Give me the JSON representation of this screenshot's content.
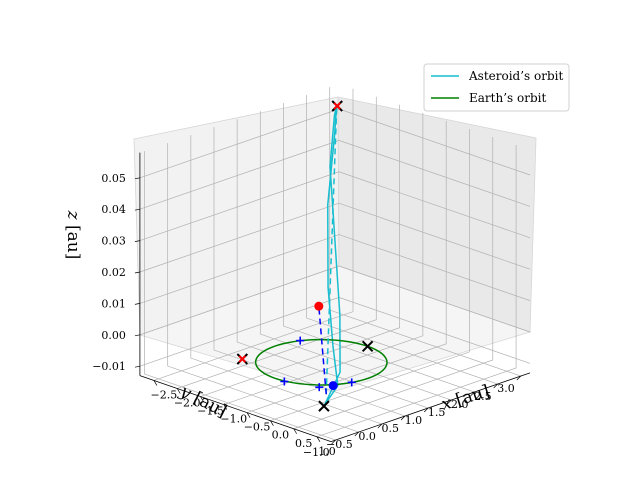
{
  "chart_data": {
    "type": "line",
    "projection": "3d",
    "xlabel": "$x$ [au]",
    "ylabel": "$y$ [au]",
    "zlabel": "$z$ [au]",
    "xlim": [
      -2.8,
      1.3
    ],
    "ylim": [
      -1.1,
      3.2
    ],
    "zlim": [
      -0.013,
      0.058
    ],
    "xticks": [
      "−2.5",
      "−2.0",
      "−1.5",
      "−1.0",
      "−0.5",
      "0.0",
      "0.5",
      "1.0"
    ],
    "yticks": [
      "−1.0",
      "−0.5",
      "0.0",
      "0.5",
      "1.0",
      "1.5",
      "2.0",
      "2.5",
      "3.0"
    ],
    "zticks": [
      "−0.01",
      "0.00",
      "0.01",
      "0.02",
      "0.03",
      "0.04",
      "0.05"
    ],
    "grid": true,
    "legend": {
      "position": "top-right",
      "entries": [
        {
          "label": "Asteroid’s orbit",
          "color": "#17becf"
        },
        {
          "label": "Earth’s orbit",
          "color": "#008000"
        }
      ]
    },
    "series": [
      {
        "name": "Asteroid’s orbit",
        "color": "#17becf",
        "style": "solid",
        "x": [
          1.0,
          0.9,
          0.2,
          -0.7,
          -1.7,
          -2.4,
          -2.65,
          -2.55,
          -1.9,
          -0.9,
          0.1,
          0.8,
          1.0
        ],
        "y": [
          -0.95,
          -0.55,
          0.05,
          0.85,
          1.85,
          2.7,
          3.0,
          2.85,
          2.1,
          1.2,
          0.3,
          -0.4,
          -0.95
        ],
        "z": [
          -0.004,
          0.0,
          0.006,
          0.016,
          0.032,
          0.046,
          0.053,
          0.051,
          0.042,
          0.028,
          0.014,
          0.003,
          -0.004
        ]
      },
      {
        "name": "Earth’s orbit",
        "color": "#008000",
        "style": "solid",
        "param": "circle",
        "radius": 1.0,
        "z": 0.0
      },
      {
        "color": "#17becf",
        "style": "dashed",
        "x": [
          0.85,
          -2.6
        ],
        "y": [
          -0.75,
          2.95
        ],
        "z": [
          -0.002,
          0.053
        ]
      },
      {
        "color": "#0000ff",
        "style": "dashed",
        "x": [
          0.85,
          -0.6
        ],
        "y": [
          -0.75,
          0.55
        ],
        "z": [
          -0.002,
          0.012
        ]
      }
    ],
    "markers": [
      {
        "kind": "x",
        "color": "#000000",
        "x": -2.62,
        "y": 2.98,
        "z": 0.053
      },
      {
        "kind": "x",
        "color": "#000000",
        "x": 0.0,
        "y": 1.0,
        "z": 0.0
      },
      {
        "kind": "x",
        "color": "#000000",
        "x": 1.0,
        "y": -0.95,
        "z": -0.004
      },
      {
        "kind": "x",
        "color": "#000000",
        "x": -0.95,
        "y": -0.75,
        "z": 0.0
      },
      {
        "kind": "x",
        "color": "#ff0000",
        "x": -2.62,
        "y": 2.98,
        "z": 0.053
      },
      {
        "kind": "x",
        "color": "#ff0000",
        "x": -0.95,
        "y": -0.75,
        "z": 0.0
      },
      {
        "kind": "plus",
        "color": "#0000ff",
        "x": 0.95,
        "y": -0.3,
        "z": 0.0
      },
      {
        "kind": "plus",
        "color": "#0000ff",
        "x": -0.9,
        "y": 0.45,
        "z": 0.0
      },
      {
        "kind": "plus",
        "color": "#0000ff",
        "x": 0.2,
        "y": -1.0,
        "z": 0.0
      },
      {
        "kind": "plus",
        "color": "#0000ff",
        "x": 0.75,
        "y": -0.8,
        "z": 0.0
      },
      {
        "kind": "dot",
        "color": "#ff0000",
        "x": -0.6,
        "y": 0.55,
        "z": 0.012
      },
      {
        "kind": "dot",
        "color": "#0000ff",
        "x": 0.85,
        "y": -0.6,
        "z": 0.0
      }
    ]
  }
}
